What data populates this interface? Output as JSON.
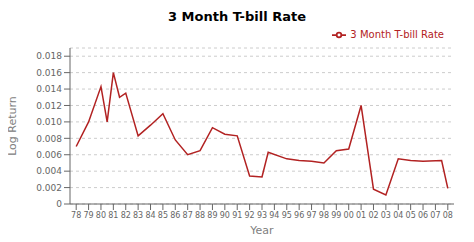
{
  "chart_data": {
    "type": "line",
    "title": "3 Month T-bill Rate",
    "x_label": "Year",
    "y_label": "Log Return",
    "x": [
      78,
      79,
      80,
      80.5,
      81,
      81.5,
      82,
      83,
      84,
      85,
      86,
      87,
      88,
      89,
      90,
      91,
      92,
      93,
      93.5,
      95,
      96,
      97,
      98,
      99,
      100,
      101,
      102,
      103,
      104,
      105,
      106,
      107.5,
      108
    ],
    "series": [
      {
        "name": "3 Month T-bill Rate",
        "color": "#b22222",
        "values": [
          0.007,
          0.01,
          0.0143,
          0.01,
          0.016,
          0.013,
          0.0135,
          0.0083,
          0.0096,
          0.011,
          0.0078,
          0.006,
          0.0065,
          0.0093,
          0.0085,
          0.0083,
          0.0034,
          0.0033,
          0.0063,
          0.0055,
          0.0053,
          0.0052,
          0.005,
          0.0065,
          0.0067,
          0.012,
          0.0018,
          0.0011,
          0.0055,
          0.0053,
          0.0052,
          0.0053,
          0.0019
        ]
      }
    ],
    "xlim": [
      77.5,
      108.5
    ],
    "xticks": [
      78,
      79,
      80,
      81,
      82,
      83,
      84,
      85,
      86,
      87,
      88,
      89,
      90,
      91,
      92,
      93,
      94,
      95,
      96,
      97,
      98,
      99,
      {
        "value": 100,
        "label": "00"
      },
      {
        "value": 101,
        "label": "01"
      },
      {
        "value": 102,
        "label": "02"
      },
      {
        "value": 103,
        "label": "03"
      },
      {
        "value": 104,
        "label": "04"
      },
      {
        "value": 105,
        "label": "05"
      },
      {
        "value": 106,
        "label": "06"
      },
      {
        "value": 107,
        "label": "07"
      },
      {
        "value": 108,
        "label": "08"
      }
    ],
    "ylim": [
      0,
      0.019
    ],
    "yticks": [
      0,
      0.002,
      0.004,
      0.006,
      0.008,
      {
        "value": 0.01,
        "label": "0.010"
      },
      0.012,
      0.014,
      0.016,
      0.018
    ],
    "grid": true,
    "legend": "upper right"
  }
}
